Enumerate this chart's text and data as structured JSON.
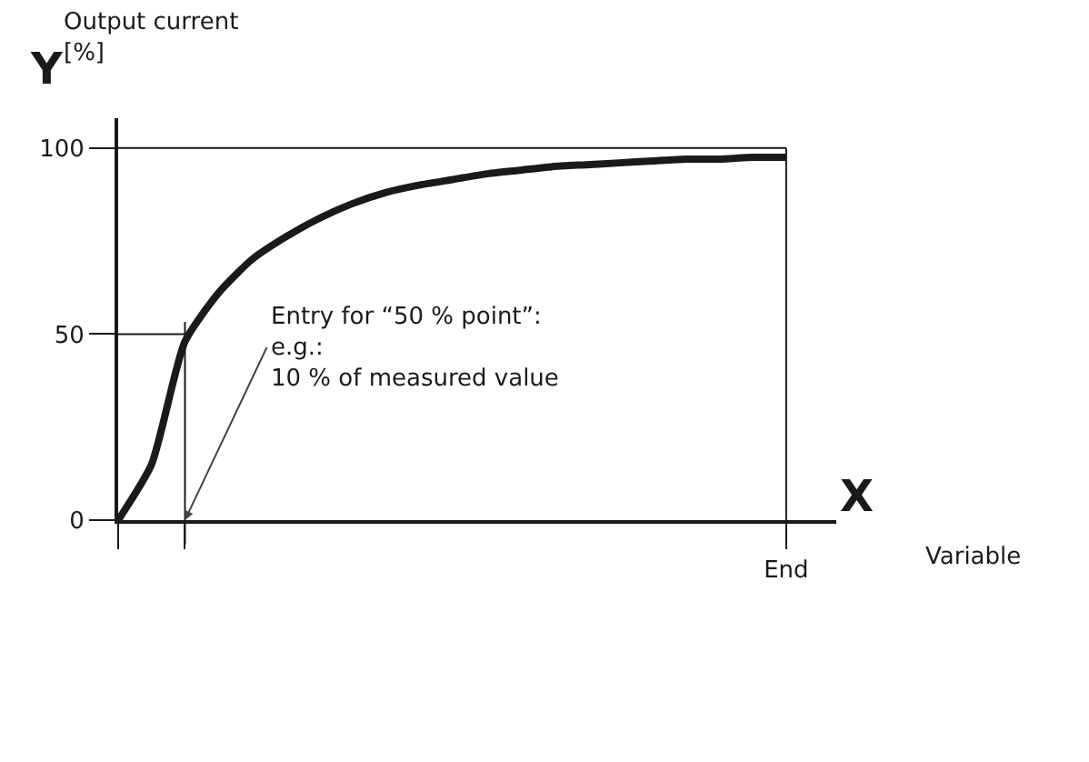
{
  "chart_data": {
    "type": "line",
    "ylabel": "Output current [%]",
    "categories": [
      null,
      null,
      null,
      null,
      null,
      null,
      null,
      null,
      null,
      null,
      null,
      null,
      null,
      null,
      null,
      null,
      null,
      null,
      null,
      null,
      "End"
    ],
    "series": [
      {
        "color": "#1a1a1a",
        "values": [
          0,
          15,
          48,
          61,
          70,
          76,
          81,
          85,
          88,
          90,
          91.5,
          93,
          94,
          95,
          95.5,
          96,
          96.5,
          97,
          97,
          97.5,
          97.5
        ]
      }
    ],
    "ylim": [
      0,
      108
    ],
    "yticks": [
      0,
      50,
      100
    ],
    "ref_lines": [
      {
        "axis": "y",
        "value": 100
      },
      {
        "axis": "x",
        "value": "End"
      },
      {
        "axis": "y",
        "value": 50
      }
    ],
    "annotations": [
      "Y",
      "X",
      "Entry for “50 % point”: e.g.: 10 % of measured value",
      "Variable"
    ],
    "grid": false,
    "marker": "none",
    "line_style": "solid"
  }
}
